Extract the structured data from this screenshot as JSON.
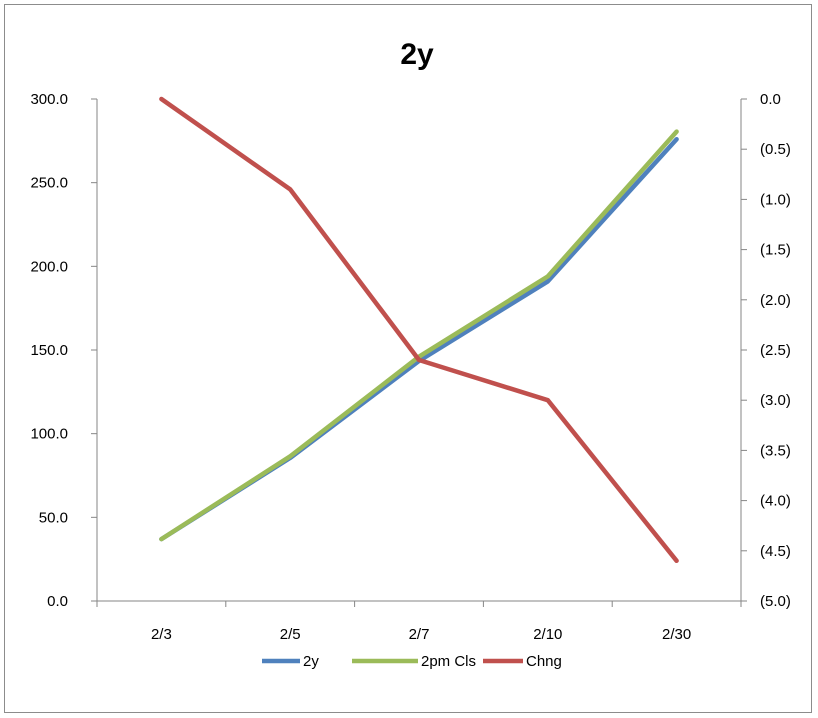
{
  "chart_data": {
    "type": "line",
    "title": "2y",
    "categories": [
      "2/3",
      "2/5",
      "2/7",
      "2/10",
      "2/30"
    ],
    "series": [
      {
        "name": "2y",
        "axis": "left",
        "color": "#4F81BD",
        "values": [
          37.0,
          85.5,
          143.5,
          191.0,
          276.0
        ]
      },
      {
        "name": "2pm Cls",
        "axis": "left",
        "color": "#9BBB59",
        "values": [
          37.0,
          86.5,
          146.0,
          194.0,
          280.5
        ]
      },
      {
        "name": "Chng",
        "axis": "right",
        "color": "#C0504D",
        "values": [
          0.0,
          -0.9,
          -2.6,
          -3.0,
          -4.6
        ]
      }
    ],
    "y_left": {
      "ylim": [
        0,
        300
      ],
      "ticks": [
        0,
        50,
        100,
        150,
        200,
        250,
        300
      ],
      "tick_labels": [
        "0.0",
        "50.0",
        "100.0",
        "150.0",
        "200.0",
        "250.0",
        "300.0"
      ]
    },
    "y_right": {
      "ylim": [
        -5,
        0
      ],
      "ticks": [
        0,
        -0.5,
        -1,
        -1.5,
        -2,
        -2.5,
        -3,
        -3.5,
        -4,
        -4.5,
        -5
      ],
      "tick_labels": [
        "0.0",
        "(0.5)",
        "(1.0)",
        "(1.5)",
        "(2.0)",
        "(2.5)",
        "(3.0)",
        "(3.5)",
        "(4.0)",
        "(4.5)",
        "(5.0)"
      ],
      "label_color_zero": "#000000",
      "label_color_negative": "#FF0000"
    },
    "grid": false,
    "legend_position": "bottom"
  }
}
